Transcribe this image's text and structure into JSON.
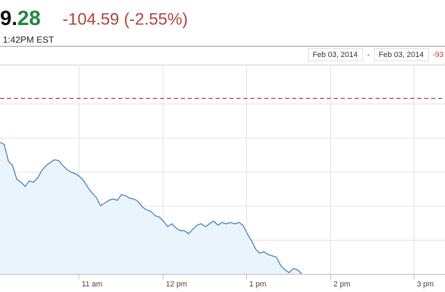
{
  "header": {
    "price_whole": "9.",
    "price_fraction": "28",
    "change": "-104.59 (-2.55%)",
    "time": "1:42PM EST"
  },
  "range": {
    "from": "Feb 03, 2014",
    "separator": "-",
    "to": "Feb 03, 2014",
    "extra": "-93"
  },
  "chart_data": {
    "type": "line",
    "x": [
      10.06,
      10.11,
      10.16,
      10.21,
      10.26,
      10.31,
      10.36,
      10.41,
      10.46,
      10.51,
      10.56,
      10.61,
      10.66,
      10.71,
      10.76,
      10.81,
      10.86,
      10.91,
      10.96,
      11.01,
      11.06,
      11.11,
      11.16,
      11.21,
      11.26,
      11.31,
      11.36,
      11.41,
      11.46,
      11.51,
      11.56,
      11.61,
      11.66,
      11.71,
      11.76,
      11.81,
      11.86,
      11.91,
      11.96,
      12.01,
      12.06,
      12.11,
      12.16,
      12.21,
      12.26,
      12.31,
      12.36,
      12.41,
      12.46,
      12.51,
      12.56,
      12.61,
      12.66,
      12.71,
      12.76,
      12.81,
      12.86,
      12.91,
      12.96,
      13.01,
      13.06,
      13.11,
      13.16,
      13.21,
      13.26,
      13.31,
      13.36,
      13.41,
      13.46,
      13.51,
      13.56,
      13.61,
      13.66
    ],
    "series": [
      {
        "color": "#3d7cb8",
        "fill": "#e9f4fc",
        "values": [
          3.86,
          3.8,
          3.31,
          3.18,
          2.78,
          2.69,
          2.57,
          2.73,
          2.69,
          2.82,
          3.04,
          3.18,
          3.27,
          3.35,
          3.33,
          3.18,
          3.06,
          2.98,
          2.94,
          2.86,
          2.73,
          2.53,
          2.37,
          2.24,
          2.0,
          2.08,
          2.16,
          2.2,
          2.16,
          2.33,
          2.29,
          2.22,
          2.2,
          2.12,
          1.96,
          1.88,
          1.84,
          1.71,
          1.67,
          1.55,
          1.39,
          1.47,
          1.35,
          1.27,
          1.27,
          1.18,
          1.31,
          1.43,
          1.47,
          1.39,
          1.47,
          1.55,
          1.43,
          1.51,
          1.47,
          1.51,
          1.47,
          1.51,
          1.43,
          1.18,
          0.98,
          0.73,
          0.61,
          0.65,
          0.57,
          0.53,
          0.49,
          0.24,
          0.12,
          0.04,
          0.16,
          0.12,
          0
        ]
      }
    ],
    "xlim": [
      10.06,
      15.37
    ],
    "ylim": [
      0,
      6.14
    ],
    "xticks": [
      {
        "value": 11,
        "label": "11 am"
      },
      {
        "value": 12,
        "label": "12 pm"
      },
      {
        "value": 13,
        "label": "1 pm"
      },
      {
        "value": 14,
        "label": "2 pm"
      },
      {
        "value": 15,
        "label": "3 pm"
      }
    ],
    "gridlines": [
      1,
      2,
      3,
      4,
      5
    ],
    "previous_close": 5.16,
    "previous_close_color": "#a33a3a",
    "grid": true
  }
}
